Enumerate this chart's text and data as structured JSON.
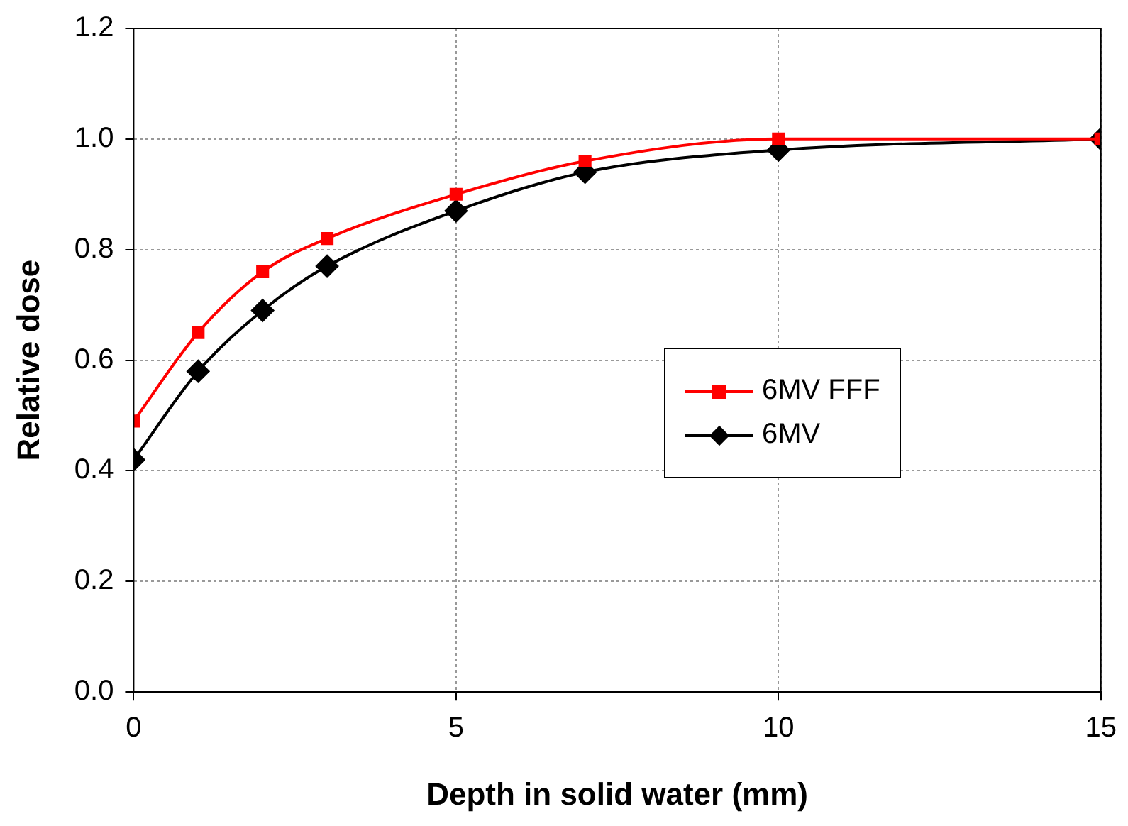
{
  "chart_data": {
    "type": "line",
    "xlabel": "Depth in solid water (mm)",
    "ylabel": "Relative dose",
    "x": [
      0,
      1,
      2,
      3,
      5,
      7,
      10,
      15
    ],
    "series": [
      {
        "name": "6MV FFF",
        "color": "#ff0000",
        "marker": "square",
        "values": [
          0.49,
          0.65,
          0.76,
          0.82,
          0.9,
          0.96,
          1.0,
          1.0
        ]
      },
      {
        "name": "6MV",
        "color": "#000000",
        "marker": "diamond",
        "values": [
          0.42,
          0.58,
          0.69,
          0.77,
          0.87,
          0.94,
          0.98,
          1.0
        ]
      }
    ],
    "xlim": [
      0,
      15
    ],
    "xticks": [
      0,
      5,
      10,
      15
    ],
    "ylim": [
      0,
      1.2
    ],
    "yticks": [
      {
        "value": 0,
        "label": "0.0"
      },
      {
        "value": 0.2,
        "label": "0.2"
      },
      {
        "value": 0.4,
        "label": "0.4"
      },
      {
        "value": 0.6,
        "label": "0.6"
      },
      {
        "value": 0.8,
        "label": "0.8"
      },
      {
        "value": 1.0,
        "label": "1.0"
      },
      {
        "value": 1.2,
        "label": "1.2"
      }
    ],
    "grid": true,
    "legend": "right",
    "line_style": "solid"
  }
}
